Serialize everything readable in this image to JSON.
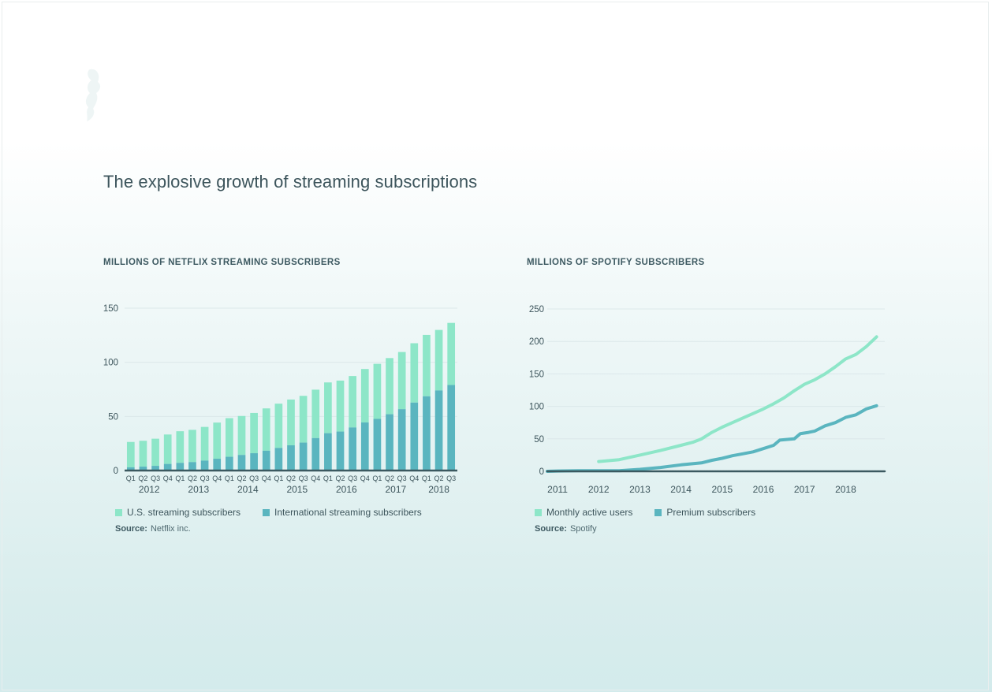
{
  "page": {
    "title": "The explosive growth of streaming subscriptions"
  },
  "colors": {
    "us": "#8de6c8",
    "intl": "#5ab5bf",
    "mau": "#8de6c8",
    "premium": "#5ab5bf",
    "text": "#3d555c",
    "grid": "#dbe8ea",
    "axis": "#3b5960"
  },
  "chart_data": [
    {
      "id": "netflix",
      "type": "bar",
      "stacked": true,
      "title": "MILLIONS OF NETFLIX STREAMING SUBSCRIBERS",
      "ylim": [
        0,
        150
      ],
      "yticks": [
        0,
        50,
        100,
        150
      ],
      "grid": true,
      "categories": [
        "Q1",
        "Q2",
        "Q3",
        "Q4",
        "Q1",
        "Q2",
        "Q3",
        "Q4",
        "Q1",
        "Q2",
        "Q3",
        "Q4",
        "Q1",
        "Q2",
        "Q3",
        "Q4",
        "Q1",
        "Q2",
        "Q3",
        "Q4",
        "Q1",
        "Q2",
        "Q3",
        "Q4",
        "Q1",
        "Q2",
        "Q3"
      ],
      "years": [
        {
          "label": "2012",
          "start": 0,
          "end": 3
        },
        {
          "label": "2013",
          "start": 4,
          "end": 7
        },
        {
          "label": "2014",
          "start": 8,
          "end": 11
        },
        {
          "label": "2015",
          "start": 12,
          "end": 15
        },
        {
          "label": "2016",
          "start": 16,
          "end": 19
        },
        {
          "label": "2017",
          "start": 20,
          "end": 23
        },
        {
          "label": "2018",
          "start": 24,
          "end": 26
        }
      ],
      "series": [
        {
          "name": "U.S. streaming subscribers",
          "values": [
            23.4,
            23.9,
            25.1,
            27.2,
            29.2,
            29.8,
            31.1,
            33.4,
            35.7,
            36.0,
            37.2,
            39.1,
            40.9,
            42.3,
            43.2,
            44.7,
            46.9,
            47.1,
            47.5,
            49.4,
            50.9,
            51.9,
            52.8,
            54.8,
            56.7,
            55.9,
            57.4
          ]
        },
        {
          "name": "International streaming subscribers",
          "values": [
            3.0,
            3.6,
            4.3,
            6.1,
            7.1,
            7.8,
            9.2,
            10.9,
            12.7,
            14.4,
            16.0,
            18.3,
            20.9,
            23.3,
            25.8,
            30.0,
            34.5,
            36.0,
            39.8,
            44.4,
            47.7,
            52.0,
            56.7,
            62.8,
            68.6,
            74.0,
            79.0
          ]
        }
      ],
      "source_label": "Source:",
      "source": "Netflix inc."
    },
    {
      "id": "spotify",
      "type": "line",
      "title": "MILLIONS OF SPOTIFY SUBSCRIBERS",
      "ylim": [
        0,
        250
      ],
      "yticks": [
        0,
        50,
        100,
        150,
        200,
        250
      ],
      "xlim": [
        2010.75,
        2018.95
      ],
      "xticks": [
        "2011",
        "2012",
        "2013",
        "2014",
        "2015",
        "2016",
        "2017",
        "2018"
      ],
      "grid": true,
      "series": [
        {
          "name": "Monthly active users",
          "x": [
            2012.0,
            2012.5,
            2013.0,
            2013.5,
            2014.0,
            2014.3,
            2014.5,
            2014.75,
            2015.0,
            2015.25,
            2015.5,
            2015.75,
            2016.0,
            2016.25,
            2016.5,
            2016.75,
            2017.0,
            2017.25,
            2017.5,
            2017.75,
            2018.0,
            2018.25,
            2018.5,
            2018.75
          ],
          "values": [
            15,
            18,
            25,
            32,
            40,
            45,
            50,
            60,
            68,
            75,
            82,
            89,
            96,
            104,
            113,
            124,
            134,
            141,
            150,
            161,
            173,
            180,
            192,
            207
          ]
        },
        {
          "name": "Premium subscribers",
          "x": [
            2010.75,
            2011.0,
            2011.5,
            2012.0,
            2012.5,
            2013.0,
            2013.5,
            2014.0,
            2014.5,
            2014.75,
            2015.0,
            2015.25,
            2015.5,
            2015.75,
            2016.0,
            2016.25,
            2016.4,
            2016.75,
            2016.9,
            2017.1,
            2017.25,
            2017.5,
            2017.75,
            2018.0,
            2018.25,
            2018.5,
            2018.75
          ],
          "values": [
            0,
            0.5,
            1,
            1,
            1,
            3,
            6,
            10,
            13,
            17,
            20,
            24,
            27,
            30,
            35,
            40,
            48,
            50,
            58,
            60,
            62,
            70,
            75,
            83,
            87,
            96,
            101
          ]
        },
        {
          "name": "Baseline",
          "x": [
            2010.75,
            2018.95
          ],
          "values": [
            0,
            0
          ]
        }
      ],
      "source_label": "Source:",
      "source": "Spotify"
    }
  ]
}
